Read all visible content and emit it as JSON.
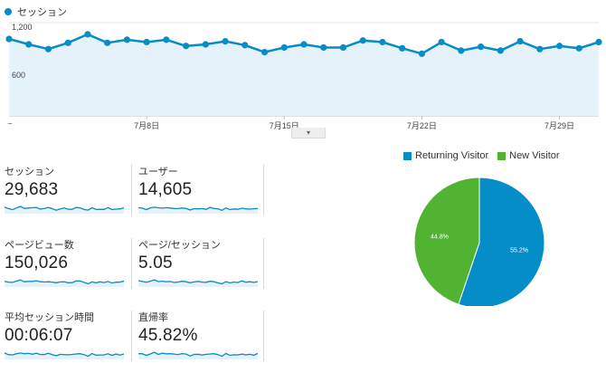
{
  "legend": {
    "label": "セッション",
    "color": "#058dc7"
  },
  "axis": {
    "y_top": "1,200",
    "y_mid": "600",
    "x_start": "...."
  },
  "x_ticks": [
    {
      "label": "7月8日",
      "day": 8
    },
    {
      "label": "7月15日",
      "day": 15
    },
    {
      "label": "7月22日",
      "day": 22
    },
    {
      "label": "7月29日",
      "day": 29
    }
  ],
  "chart_data": {
    "type": "area",
    "series": [
      {
        "name": "セッション",
        "x": [
          "7月1日",
          "7月2日",
          "7月3日",
          "7月4日",
          "7月5日",
          "7月6日",
          "7月7日",
          "7月8日",
          "7月9日",
          "7月10日",
          "7月11日",
          "7月12日",
          "7月13日",
          "7月14日",
          "7月15日",
          "7月16日",
          "7月17日",
          "7月18日",
          "7月19日",
          "7月20日",
          "7月21日",
          "7月22日",
          "7月23日",
          "7月24日",
          "7月25日",
          "7月26日",
          "7月27日",
          "7月28日",
          "7月29日",
          "7月30日",
          "7月31日"
        ],
        "values": [
          990,
          920,
          860,
          940,
          1050,
          940,
          980,
          950,
          980,
          900,
          920,
          960,
          910,
          820,
          880,
          920,
          880,
          880,
          970,
          950,
          870,
          800,
          950,
          840,
          890,
          840,
          960,
          860,
          900,
          870,
          950
        ]
      }
    ],
    "ylim": [
      0,
      1200
    ],
    "yticks": [
      "600",
      "1,200"
    ],
    "grid": true
  },
  "collapse_glyph": "▾",
  "metrics": [
    {
      "name": "セッション",
      "value": "29,683"
    },
    {
      "name": "ユーザー",
      "value": "14,605"
    },
    {
      "name": "ページビュー数",
      "value": "150,026"
    },
    {
      "name": "ページ/セッション",
      "value": "5.05"
    },
    {
      "name": "平均セッション時間",
      "value": "00:06:07"
    },
    {
      "name": "直帰率",
      "value": "45.82%"
    }
  ],
  "pie": {
    "type": "pie",
    "legend": [
      {
        "name": "Returning Visitor",
        "color": "#058dc7"
      },
      {
        "name": "New Visitor",
        "color": "#50b432"
      }
    ],
    "slices": [
      {
        "name": "Returning Visitor",
        "value": 55.2,
        "label": "55.2%",
        "color": "#058dc7"
      },
      {
        "name": "New Visitor",
        "value": 44.8,
        "label": "44.8%",
        "color": "#50b432"
      }
    ]
  }
}
